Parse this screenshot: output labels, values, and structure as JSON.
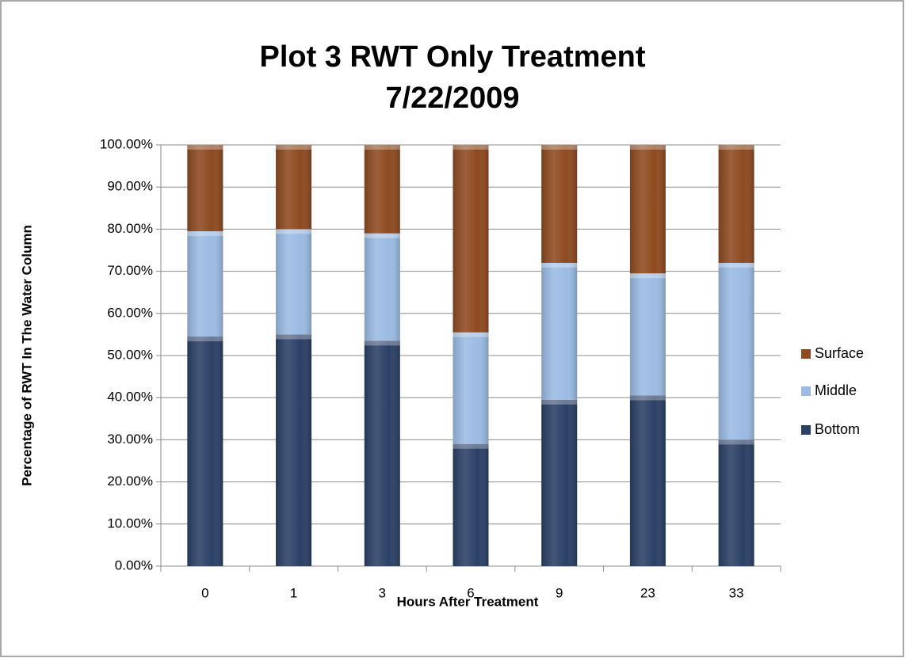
{
  "chart_data": {
    "type": "stacked_bar",
    "title": [
      "Plot 3 RWT Only Treatment",
      "7/22/2009"
    ],
    "x_label": "Hours After Treatment",
    "y_label": "Percentage of RWT In The Water Column",
    "categories": [
      "0",
      "1",
      "3",
      "6",
      "9",
      "23",
      "33"
    ],
    "series": [
      {
        "name": "Bottom",
        "color": "#2b4066",
        "values": [
          54.5,
          55,
          53.5,
          29,
          39.5,
          40.5,
          30
        ]
      },
      {
        "name": "Middle",
        "color": "#9bbbe3",
        "values": [
          25,
          25,
          25.5,
          26.5,
          32.5,
          29,
          42
        ]
      },
      {
        "name": "Surface",
        "color": "#8e4a20",
        "values": [
          20.5,
          20,
          21,
          44.5,
          28,
          30.5,
          28
        ]
      }
    ],
    "ylim": [
      0,
      100
    ],
    "yticks": [
      {
        "value": 0,
        "label": "0.00%"
      },
      {
        "value": 10,
        "label": "10.00%"
      },
      {
        "value": 20,
        "label": "20.00%"
      },
      {
        "value": 30,
        "label": "30.00%"
      },
      {
        "value": 40,
        "label": "40.00%"
      },
      {
        "value": 50,
        "label": "50.00%"
      },
      {
        "value": 60,
        "label": "60.00%"
      },
      {
        "value": 70,
        "label": "70.00%"
      },
      {
        "value": 80,
        "label": "80.00%"
      },
      {
        "value": 90,
        "label": "90.00%"
      },
      {
        "value": 100,
        "label": "100.00%"
      }
    ],
    "grid": true,
    "legend": "right"
  }
}
